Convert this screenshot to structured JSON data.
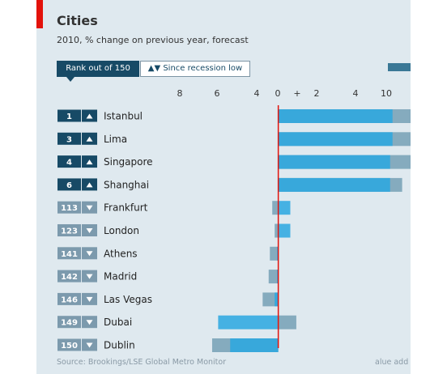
{
  "title": "Cities",
  "subtitle": "2010, % change on previous year, forecast",
  "tabs": {
    "rank": "Rank out of 150",
    "recession": "▲▼ Since recession low"
  },
  "source": "Source: Brookings/LSE Global Metro Monitor",
  "note": "alue add",
  "colors": {
    "accent_red": "#e3120b",
    "dark_bar": "#3a7896",
    "light_bar": "#2aa7e1",
    "rank_box_dark": "#174a66",
    "rank_box_light": "#7c9aad"
  },
  "chart_data": {
    "type": "bar",
    "xlim": [
      -9,
      11
    ],
    "tick_labels": [
      "8",
      "6",
      "4",
      "0",
      "+",
      "2",
      "4",
      "10"
    ],
    "categories": [
      "Istanbul",
      "Lima",
      "Singapore",
      "Shanghai",
      "Frankfurt",
      "London",
      "Athens",
      "Madrid",
      "Las Vegas",
      "Dubai",
      "Dublin"
    ],
    "ranks": [
      "1",
      "3",
      "4",
      "6",
      "113",
      "123",
      "141",
      "142",
      "146",
      "149",
      "150"
    ],
    "direction": [
      "up",
      "up",
      "up",
      "up",
      "down",
      "down",
      "down",
      "down",
      "down",
      "down",
      "down"
    ],
    "series": [
      {
        "values": [
          9.5,
          9.5,
          9.3,
          9.3,
          1.0,
          1.0,
          -0.1,
          -0.1,
          -0.3,
          -5.0,
          -4.0
        ]
      },
      {
        "values": [
          11,
          11,
          11,
          10.3,
          -0.5,
          -0.3,
          -0.7,
          -0.8,
          -1.3,
          1.5,
          -5.5
        ]
      }
    ]
  }
}
